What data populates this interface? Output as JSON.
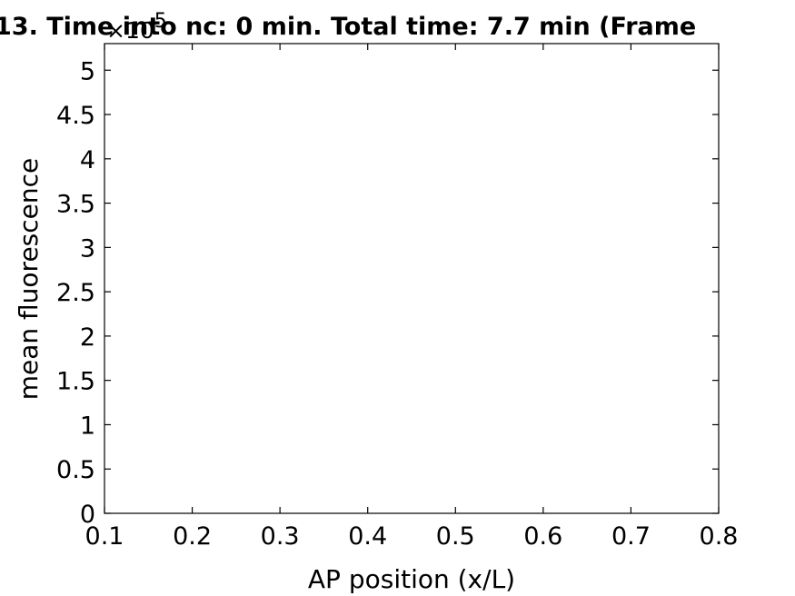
{
  "chart_data": {
    "type": "line",
    "title": "13. Time into nc: 0 min. Total time: 7.7 min (Frame",
    "xlabel": "AP position (x/L)",
    "ylabel": "mean fluorescence",
    "xlim": [
      0.1,
      0.8
    ],
    "ylim": [
      0,
      530000
    ],
    "x_ticks": [
      0.1,
      0.2,
      0.3,
      0.4,
      0.5,
      0.6,
      0.7,
      0.8
    ],
    "x_tick_labels": [
      "0.1",
      "0.2",
      "0.3",
      "0.4",
      "0.5",
      "0.6",
      "0.7",
      "0.8"
    ],
    "y_ticks": [
      0,
      50000,
      100000,
      150000,
      200000,
      250000,
      300000,
      350000,
      400000,
      450000,
      500000
    ],
    "y_tick_labels": [
      "0",
      "0.5",
      "1",
      "1.5",
      "2",
      "2.5",
      "3",
      "3.5",
      "4",
      "4.5",
      "5"
    ],
    "y_exponent_prefix": "×10",
    "y_exponent_power": "5",
    "grid": false,
    "series": [],
    "colors": {
      "axis": "#000000",
      "background": "#ffffff"
    }
  }
}
